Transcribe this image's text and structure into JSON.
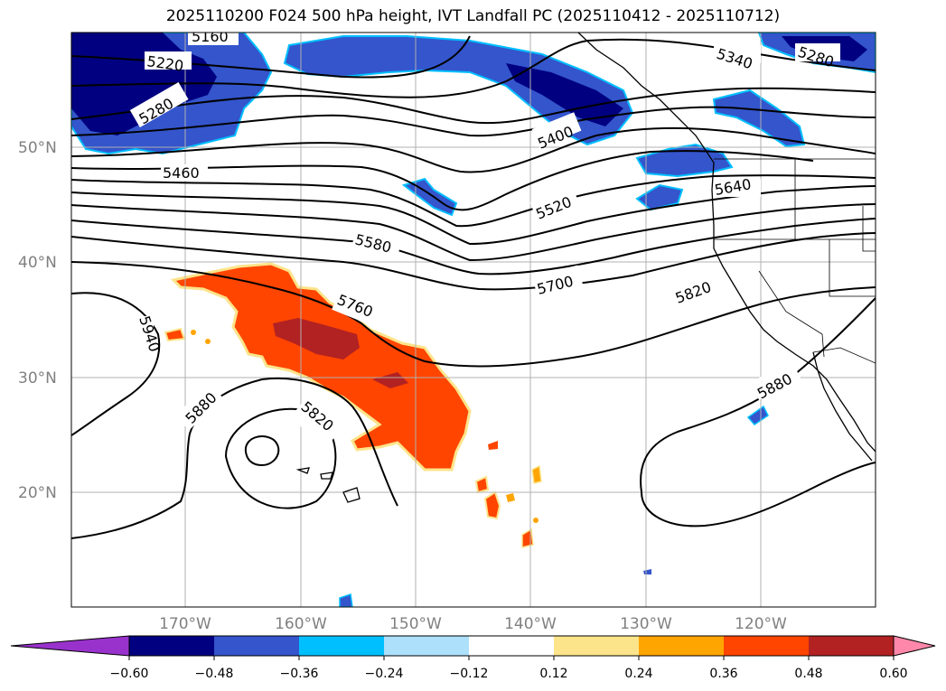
{
  "title": "2025110200 F024 500 hPa height, IVT Landfall PC (2025110412 - 2025110712)",
  "map": {
    "lat_ticks": [
      "50°N",
      "40°N",
      "30°N",
      "20°N"
    ],
    "lon_ticks": [
      "170°W",
      "160°W",
      "150°W",
      "140°W",
      "130°W",
      "120°W"
    ],
    "contour_labels": [
      "5160",
      "5220",
      "5280",
      "5340",
      "5280",
      "5400",
      "5460",
      "5520",
      "5580",
      "5640",
      "5700",
      "5760",
      "5820",
      "5820",
      "5880",
      "5880",
      "5940"
    ]
  },
  "colorbar": {
    "ticks": [
      "−0.60",
      "−0.48",
      "−0.36",
      "−0.24",
      "−0.12",
      "0.12",
      "0.24",
      "0.36",
      "0.48",
      "0.60"
    ],
    "colors": [
      "#9932CC",
      "#000080",
      "#3455CC",
      "#00BFFF",
      "#ADE0FA",
      "#FFFFFF",
      "#FCE48A",
      "#FFA500",
      "#FF4500",
      "#B22222",
      "#FF88AA"
    ]
  }
}
